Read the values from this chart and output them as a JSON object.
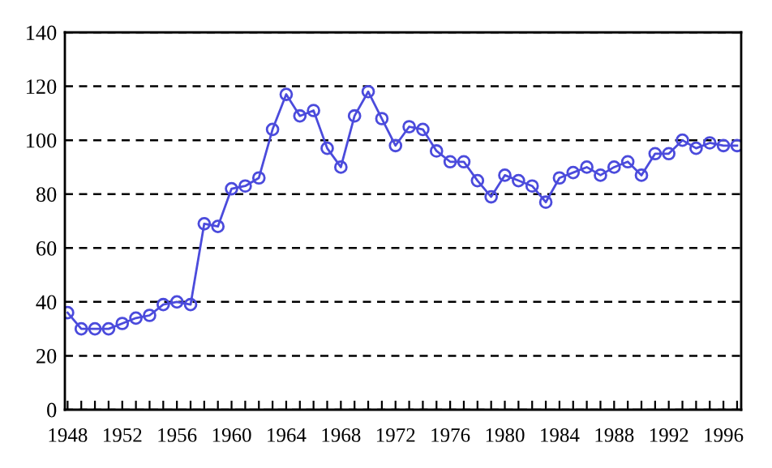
{
  "chart_data": {
    "type": "line",
    "x": [
      1948,
      1949,
      1950,
      1951,
      1952,
      1953,
      1954,
      1955,
      1956,
      1957,
      1958,
      1959,
      1960,
      1961,
      1962,
      1963,
      1964,
      1965,
      1966,
      1967,
      1968,
      1969,
      1970,
      1971,
      1972,
      1973,
      1974,
      1975,
      1976,
      1977,
      1978,
      1979,
      1980,
      1981,
      1982,
      1983,
      1984,
      1985,
      1986,
      1987,
      1988,
      1989,
      1990,
      1991,
      1992,
      1993,
      1994,
      1995,
      1996,
      1997
    ],
    "series": [
      {
        "color": "#4b4bdc",
        "values": [
          36,
          30,
          30,
          30,
          32,
          34,
          35,
          39,
          40,
          39,
          69,
          68,
          82,
          83,
          86,
          104,
          117,
          109,
          111,
          97,
          90,
          109,
          118,
          108,
          98,
          105,
          104,
          96,
          92,
          92,
          85,
          79,
          87,
          85,
          83,
          77,
          86,
          88,
          90,
          87,
          90,
          92,
          87,
          95,
          95,
          100,
          97,
          99,
          98,
          98
        ]
      }
    ],
    "xlim": [
      1947.8,
      1997.3
    ],
    "xticks": [
      1948,
      {
        "value": 1949,
        "label": null
      },
      {
        "value": 1950,
        "label": null
      },
      {
        "value": 1951,
        "label": null
      },
      1952,
      {
        "value": 1953,
        "label": null
      },
      {
        "value": 1954,
        "label": null
      },
      {
        "value": 1955,
        "label": null
      },
      1956,
      {
        "value": 1957,
        "label": null
      },
      {
        "value": 1958,
        "label": null
      },
      {
        "value": 1959,
        "label": null
      },
      1960,
      {
        "value": 1961,
        "label": null
      },
      {
        "value": 1962,
        "label": null
      },
      {
        "value": 1963,
        "label": null
      },
      1964,
      {
        "value": 1965,
        "label": null
      },
      {
        "value": 1966,
        "label": null
      },
      {
        "value": 1967,
        "label": null
      },
      1968,
      {
        "value": 1969,
        "label": null
      },
      {
        "value": 1970,
        "label": null
      },
      {
        "value": 1971,
        "label": null
      },
      1972,
      {
        "value": 1973,
        "label": null
      },
      {
        "value": 1974,
        "label": null
      },
      {
        "value": 1975,
        "label": null
      },
      1976,
      {
        "value": 1977,
        "label": null
      },
      {
        "value": 1978,
        "label": null
      },
      {
        "value": 1979,
        "label": null
      },
      1980,
      {
        "value": 1981,
        "label": null
      },
      {
        "value": 1982,
        "label": null
      },
      {
        "value": 1983,
        "label": null
      },
      1984,
      {
        "value": 1985,
        "label": null
      },
      {
        "value": 1986,
        "label": null
      },
      {
        "value": 1987,
        "label": null
      },
      1988,
      {
        "value": 1989,
        "label": null
      },
      {
        "value": 1990,
        "label": null
      },
      {
        "value": 1991,
        "label": null
      },
      1992,
      {
        "value": 1993,
        "label": null
      },
      {
        "value": 1994,
        "label": null
      },
      {
        "value": 1995,
        "label": null
      },
      1996,
      {
        "value": 1997,
        "label": null
      }
    ],
    "ylim": [
      0,
      140
    ],
    "yticks": [
      0,
      20,
      40,
      60,
      80,
      100,
      120,
      140
    ],
    "grid": "y",
    "marker": "circle",
    "line_style": "solid",
    "legend": false
  }
}
